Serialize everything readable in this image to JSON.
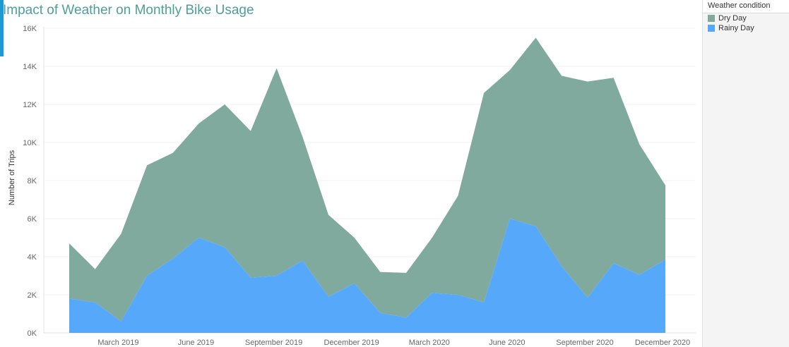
{
  "chart_data": {
    "type": "area",
    "stacked": true,
    "title": "Impact of Weather on Monthly Bike Usage",
    "xlabel": "",
    "ylabel": "Number of Trips",
    "ylim": [
      0,
      16000
    ],
    "y_ticks": [
      0,
      2000,
      4000,
      6000,
      8000,
      10000,
      12000,
      14000,
      16000
    ],
    "y_tick_labels": [
      "0K",
      "2K",
      "4K",
      "6K",
      "8K",
      "10K",
      "12K",
      "14K",
      "16K"
    ],
    "x": [
      "Jan 2019",
      "Feb 2019",
      "Mar 2019",
      "Apr 2019",
      "May 2019",
      "Jun 2019",
      "Jul 2019",
      "Aug 2019",
      "Sep 2019",
      "Oct 2019",
      "Nov 2019",
      "Dec 2019",
      "Jan 2020",
      "Feb 2020",
      "Mar 2020",
      "Apr 2020",
      "May 2020",
      "Jun 2020",
      "Jul 2020",
      "Aug 2020",
      "Sep 2020",
      "Oct 2020",
      "Nov 2020",
      "Dec 2020"
    ],
    "x_tick_labels": [
      {
        "index": 2,
        "label": "March 2019"
      },
      {
        "index": 5,
        "label": "June 2019"
      },
      {
        "index": 8,
        "label": "September 2019"
      },
      {
        "index": 11,
        "label": "December 2019"
      },
      {
        "index": 14,
        "label": "March 2020"
      },
      {
        "index": 17,
        "label": "June 2020"
      },
      {
        "index": 20,
        "label": "September 2020"
      },
      {
        "index": 23,
        "label": "December 2020"
      }
    ],
    "series": [
      {
        "name": "Rainy Day",
        "color": "#56a8fb",
        "values": [
          1800,
          1600,
          600,
          3000,
          3900,
          5000,
          4500,
          2900,
          3000,
          3800,
          1900,
          2600,
          1050,
          800,
          2100,
          2000,
          1600,
          6000,
          5600,
          3500,
          1850,
          3650,
          3050,
          3850
        ]
      },
      {
        "name": "Dry Day",
        "color": "#7faa9d",
        "values": [
          2900,
          1750,
          4600,
          5800,
          5550,
          6000,
          7500,
          7700,
          10900,
          6500,
          4300,
          2400,
          2150,
          2350,
          2900,
          5200,
          11000,
          7800,
          9900,
          10000,
          11350,
          9750,
          6850,
          3900
        ]
      }
    ],
    "legend": {
      "title": "Weather condition",
      "position": "right",
      "items": [
        "Dry Day",
        "Rainy Day"
      ]
    },
    "grid": true
  }
}
